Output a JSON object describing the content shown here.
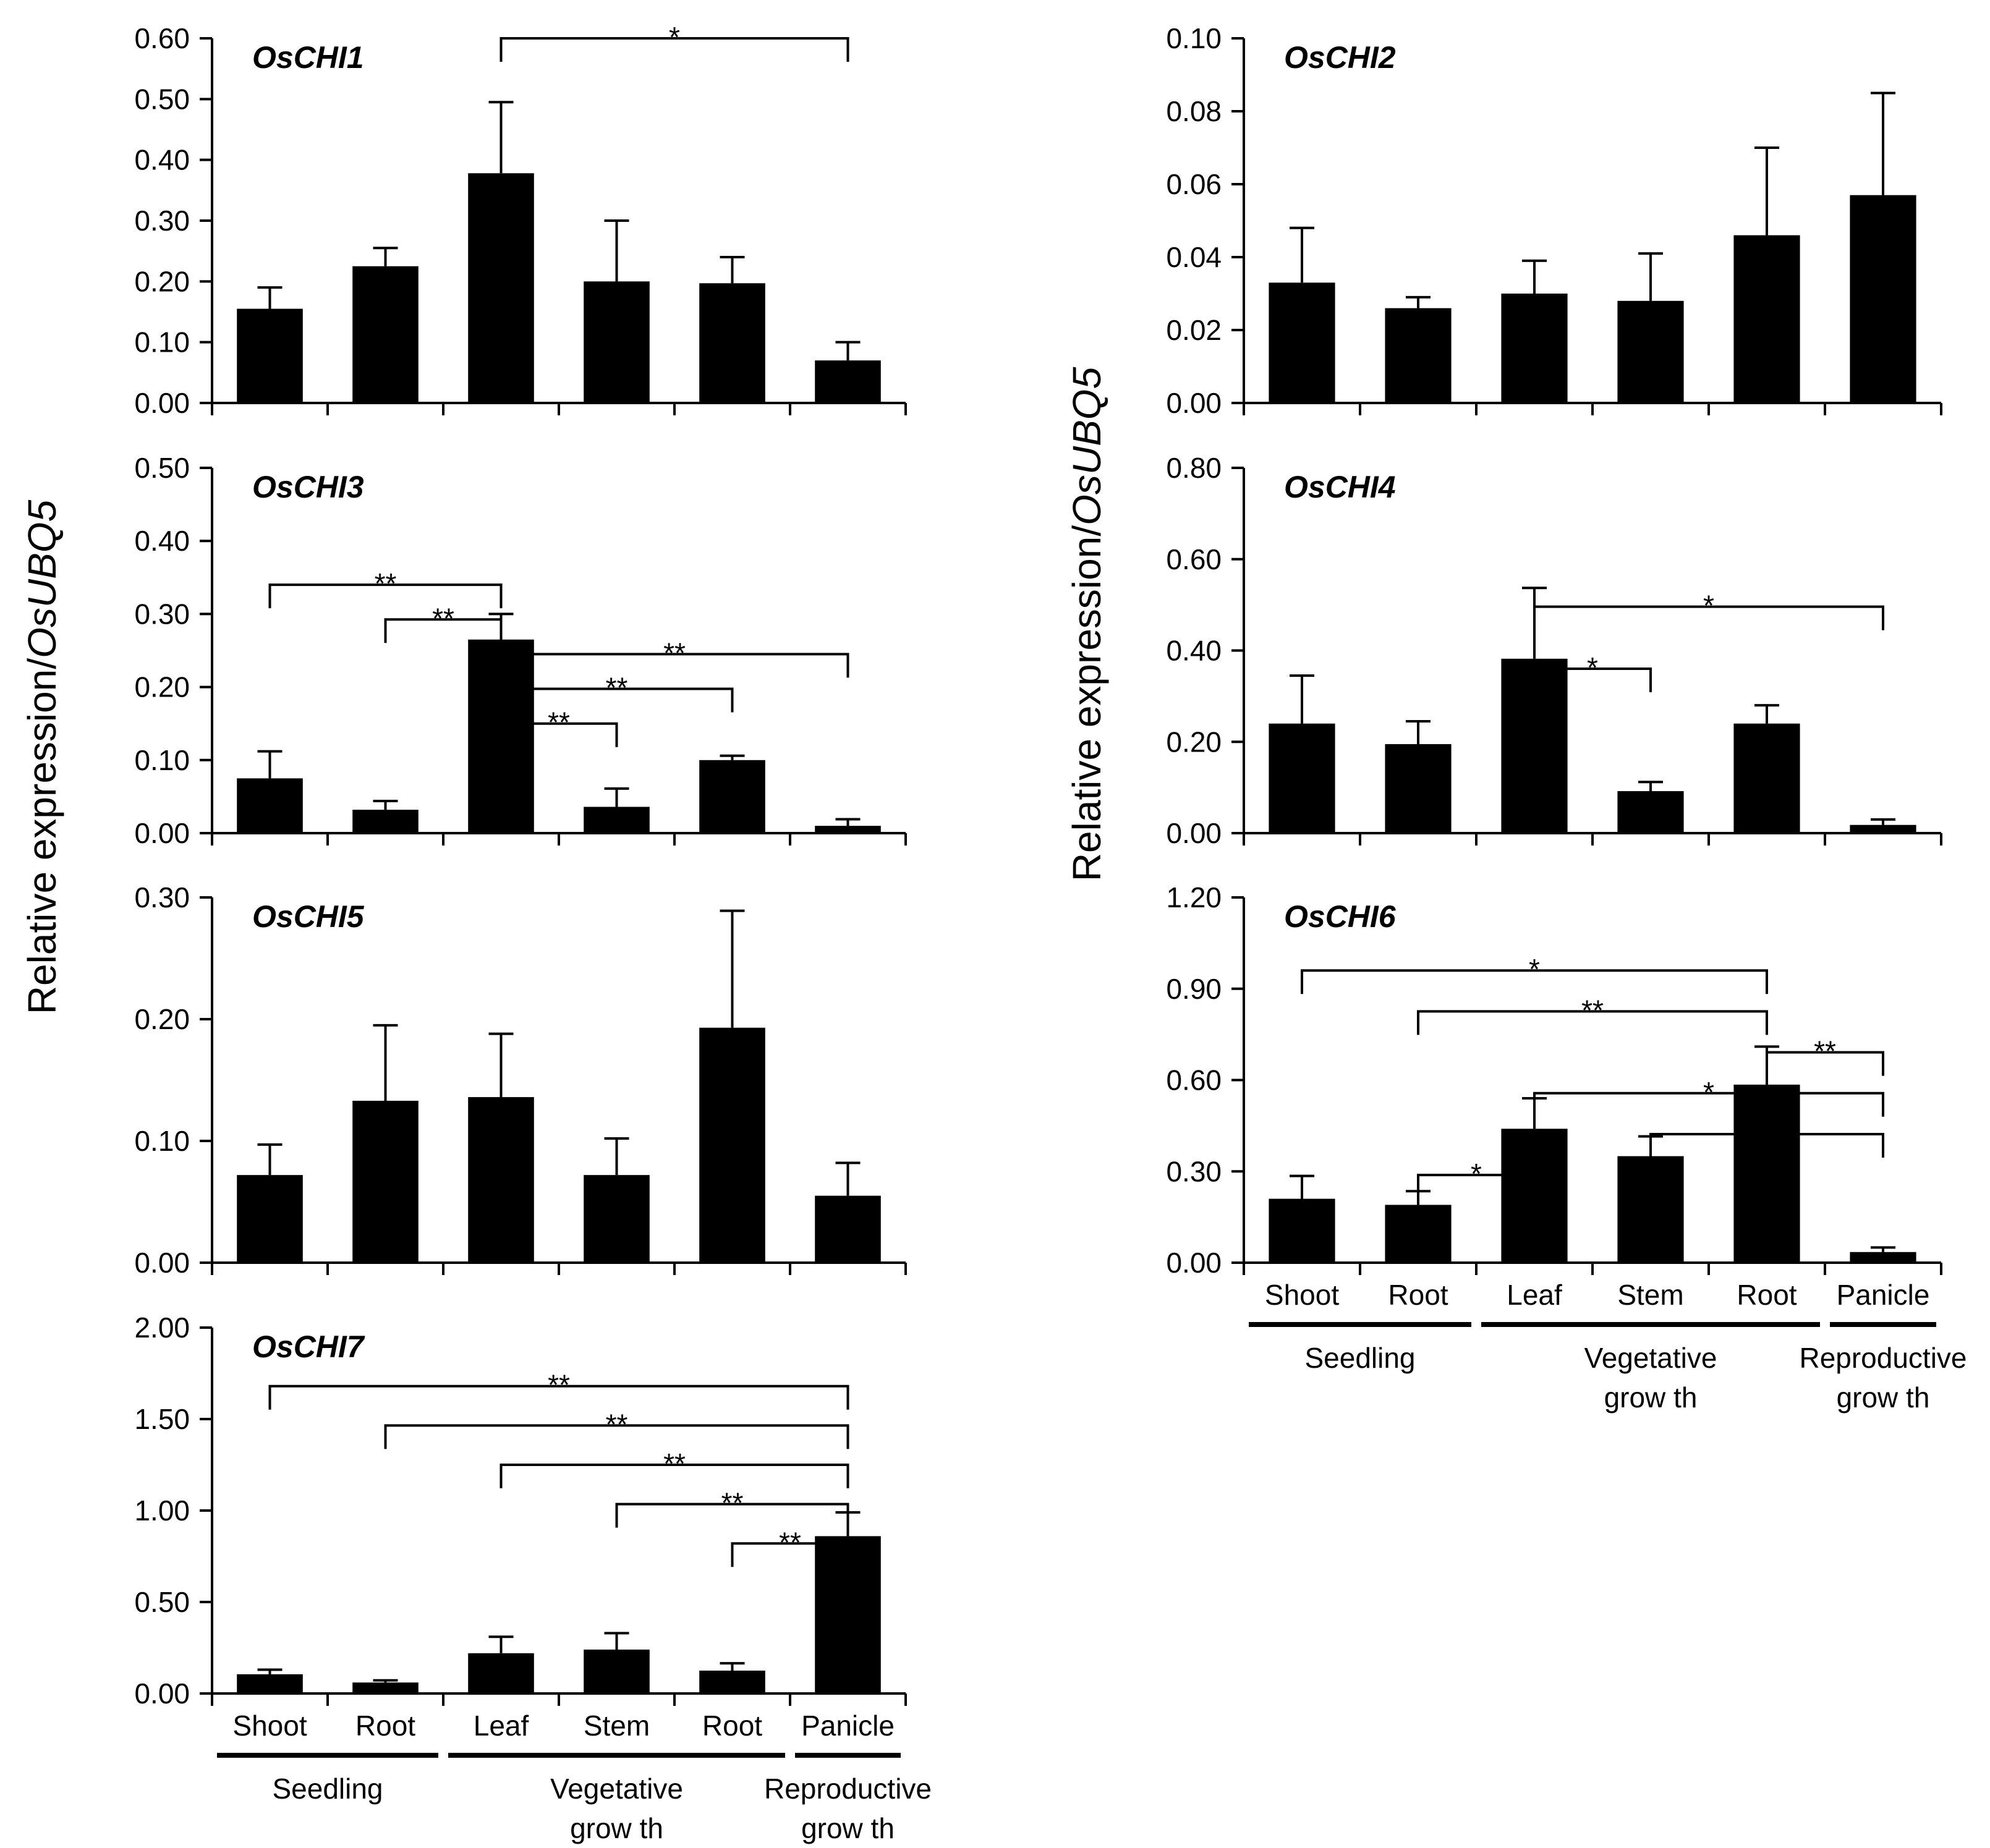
{
  "chart_data": {
    "type": "bar",
    "ylabel_prefix": "Relative expression/",
    "ylabel_gene": "OsUBQ5",
    "categories": [
      "Shoot",
      "Root",
      "Leaf",
      "Stem",
      "Root",
      "Panicle"
    ],
    "groups": [
      {
        "label_lines": [
          "Seedling"
        ],
        "from": 0,
        "to": 1
      },
      {
        "label_lines": [
          "Vegetative",
          "grow th"
        ],
        "from": 2,
        "to": 4
      },
      {
        "label_lines": [
          "Reproductive",
          "grow th"
        ],
        "from": 5,
        "to": 5
      }
    ],
    "panels": [
      {
        "title": "OsCHI1",
        "ylim": [
          0,
          0.6
        ],
        "ticks": [
          "0.00",
          "0.10",
          "0.20",
          "0.30",
          "0.40",
          "0.50",
          "0.60"
        ],
        "values": [
          0.155,
          0.225,
          0.378,
          0.2,
          0.197,
          0.07
        ],
        "errors": [
          0.035,
          0.03,
          0.117,
          0.1,
          0.043,
          0.03
        ],
        "brackets": [
          {
            "from": 2,
            "to": 5,
            "label": "*"
          }
        ],
        "show_categories": false
      },
      {
        "title": "OsCHI2",
        "ylim": [
          0,
          0.1
        ],
        "ticks": [
          "0.00",
          "0.02",
          "0.04",
          "0.06",
          "0.08",
          "0.10"
        ],
        "values": [
          0.033,
          0.026,
          0.03,
          0.028,
          0.046,
          0.057
        ],
        "errors": [
          0.015,
          0.003,
          0.009,
          0.013,
          0.024,
          0.028
        ],
        "brackets": [],
        "show_categories": false
      },
      {
        "title": "OsCHI3",
        "ylim": [
          0,
          0.5
        ],
        "ticks": [
          "0.00",
          "0.10",
          "0.20",
          "0.30",
          "0.40",
          "0.50"
        ],
        "values": [
          0.075,
          0.032,
          0.265,
          0.036,
          0.1,
          0.01
        ],
        "errors": [
          0.037,
          0.012,
          0.035,
          0.025,
          0.006,
          0.009
        ],
        "brackets": [
          {
            "from": 0,
            "to": 2,
            "label": "**"
          },
          {
            "from": 1,
            "to": 2,
            "label": "**"
          },
          {
            "from": 2,
            "to": 5,
            "label": "**"
          },
          {
            "from": 2,
            "to": 4,
            "label": "**"
          },
          {
            "from": 2,
            "to": 3,
            "label": "**"
          }
        ],
        "show_categories": false
      },
      {
        "title": "OsCHI4",
        "ylim": [
          0,
          0.8
        ],
        "ticks": [
          "0.00",
          "0.20",
          "0.40",
          "0.60",
          "0.80"
        ],
        "values": [
          0.24,
          0.195,
          0.382,
          0.092,
          0.24,
          0.018
        ],
        "errors": [
          0.105,
          0.05,
          0.155,
          0.02,
          0.04,
          0.012
        ],
        "brackets": [
          {
            "from": 2,
            "to": 5,
            "label": "*"
          },
          {
            "from": 2,
            "to": 3,
            "label": "*"
          }
        ],
        "show_categories": false
      },
      {
        "title": "OsCHI5",
        "ylim": [
          0,
          0.3
        ],
        "ticks": [
          "0.00",
          "0.10",
          "0.20",
          "0.30"
        ],
        "values": [
          0.072,
          0.133,
          0.136,
          0.072,
          0.193,
          0.055
        ],
        "errors": [
          0.025,
          0.062,
          0.052,
          0.03,
          0.096,
          0.027
        ],
        "brackets": [],
        "show_categories": false
      },
      {
        "title": "OsCHI6",
        "ylim": [
          0,
          1.2
        ],
        "ticks": [
          "0.00",
          "0.30",
          "0.60",
          "0.90",
          "1.20"
        ],
        "values": [
          0.21,
          0.19,
          0.44,
          0.35,
          0.585,
          0.035
        ],
        "errors": [
          0.075,
          0.045,
          0.1,
          0.065,
          0.125,
          0.015
        ],
        "brackets": [
          {
            "from": 0,
            "to": 4,
            "label": "*"
          },
          {
            "from": 1,
            "to": 4,
            "label": "**"
          },
          {
            "from": 4,
            "to": 5,
            "label": "**"
          },
          {
            "from": 2,
            "to": 5,
            "label": "*"
          },
          {
            "from": 3,
            "to": 5,
            "label": "*"
          },
          {
            "from": 1,
            "to": 2,
            "label": "*"
          }
        ],
        "show_categories": true
      },
      {
        "title": "OsCHI7",
        "ylim": [
          0,
          2.0
        ],
        "ticks": [
          "0.00",
          "0.50",
          "1.00",
          "1.50",
          "2.00"
        ],
        "values": [
          0.105,
          0.06,
          0.22,
          0.24,
          0.125,
          0.86
        ],
        "errors": [
          0.025,
          0.012,
          0.09,
          0.09,
          0.04,
          0.13
        ],
        "brackets": [
          {
            "from": 0,
            "to": 5,
            "label": "**"
          },
          {
            "from": 1,
            "to": 5,
            "label": "**"
          },
          {
            "from": 2,
            "to": 5,
            "label": "**"
          },
          {
            "from": 3,
            "to": 5,
            "label": "**"
          },
          {
            "from": 4,
            "to": 5,
            "label": "**"
          }
        ],
        "show_categories": true
      }
    ]
  }
}
